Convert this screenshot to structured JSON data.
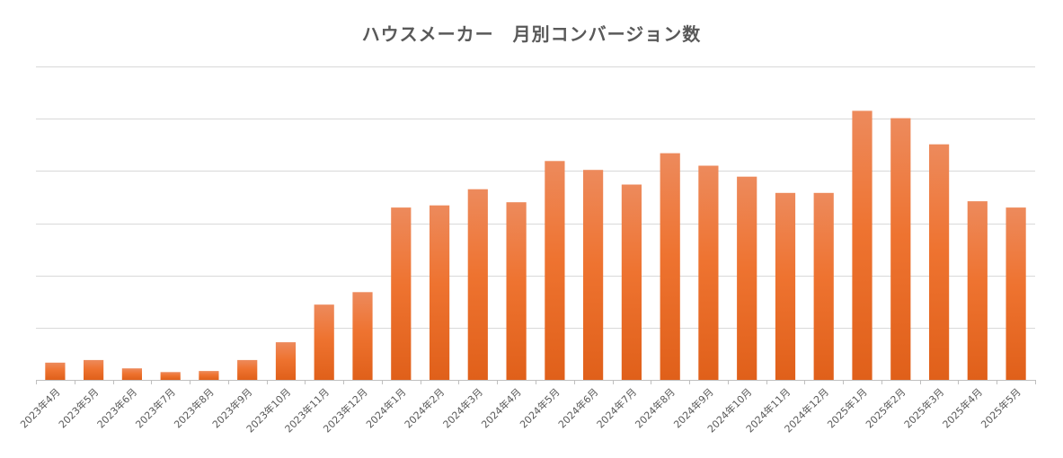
{
  "chart_data": {
    "type": "bar",
    "title": "ハウスメーカー　月別コンバージョン数",
    "xlabel": "",
    "ylabel": "",
    "categories": [
      "2023年4月",
      "2023年5月",
      "2023年6月",
      "2023年7月",
      "2023年8月",
      "2023年9月",
      "2023年10月",
      "2023年11月",
      "2023年12月",
      "2024年1月",
      "2024年2月",
      "2024年3月",
      "2024年4月",
      "2024年5月",
      "2024年6月",
      "2024年7月",
      "2024年8月",
      "2024年9月",
      "2024年10月",
      "2024年11月",
      "2024年12月",
      "2025年1月",
      "2025年2月",
      "2025年3月",
      "2025年4月",
      "2025年5月"
    ],
    "values": [
      0.33,
      0.38,
      0.22,
      0.15,
      0.17,
      0.38,
      0.72,
      1.44,
      1.68,
      3.3,
      3.34,
      3.65,
      3.4,
      4.19,
      4.02,
      3.74,
      4.34,
      4.1,
      3.89,
      3.58,
      3.58,
      5.15,
      5.01,
      4.51,
      3.42,
      3.3
    ],
    "ylim": [
      0,
      6
    ],
    "ytick_step": 1,
    "ytick_labels_visible": false,
    "grid": true,
    "bar_color_top": "#ED8A5C",
    "bar_color_bottom": "#E0601A",
    "legend": "none"
  }
}
